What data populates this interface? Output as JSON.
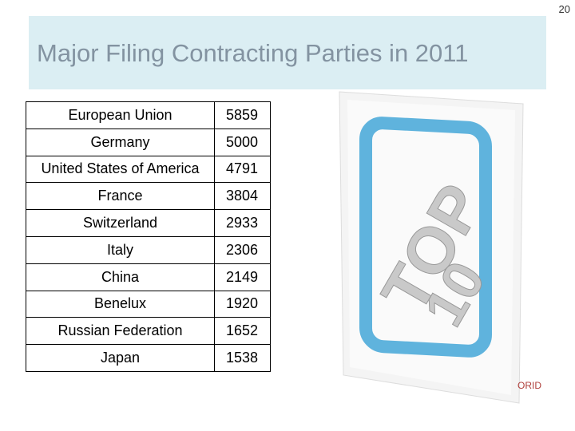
{
  "page_number": "20",
  "title": "Major Filing Contracting Parties in 2011",
  "table": {
    "rows": [
      [
        "European Union",
        5859
      ],
      [
        "Germany",
        5000
      ],
      [
        "United States of America",
        4791
      ],
      [
        "France",
        3804
      ],
      [
        "Switzerland",
        2933
      ],
      [
        "Italy",
        2306
      ],
      [
        "China",
        2149
      ],
      [
        "Benelux",
        1920
      ],
      [
        "Russian Federation",
        1652
      ],
      [
        "Japan",
        1538
      ]
    ]
  },
  "image": {
    "texts": [
      "TOP",
      "10",
      "ORID"
    ]
  }
}
